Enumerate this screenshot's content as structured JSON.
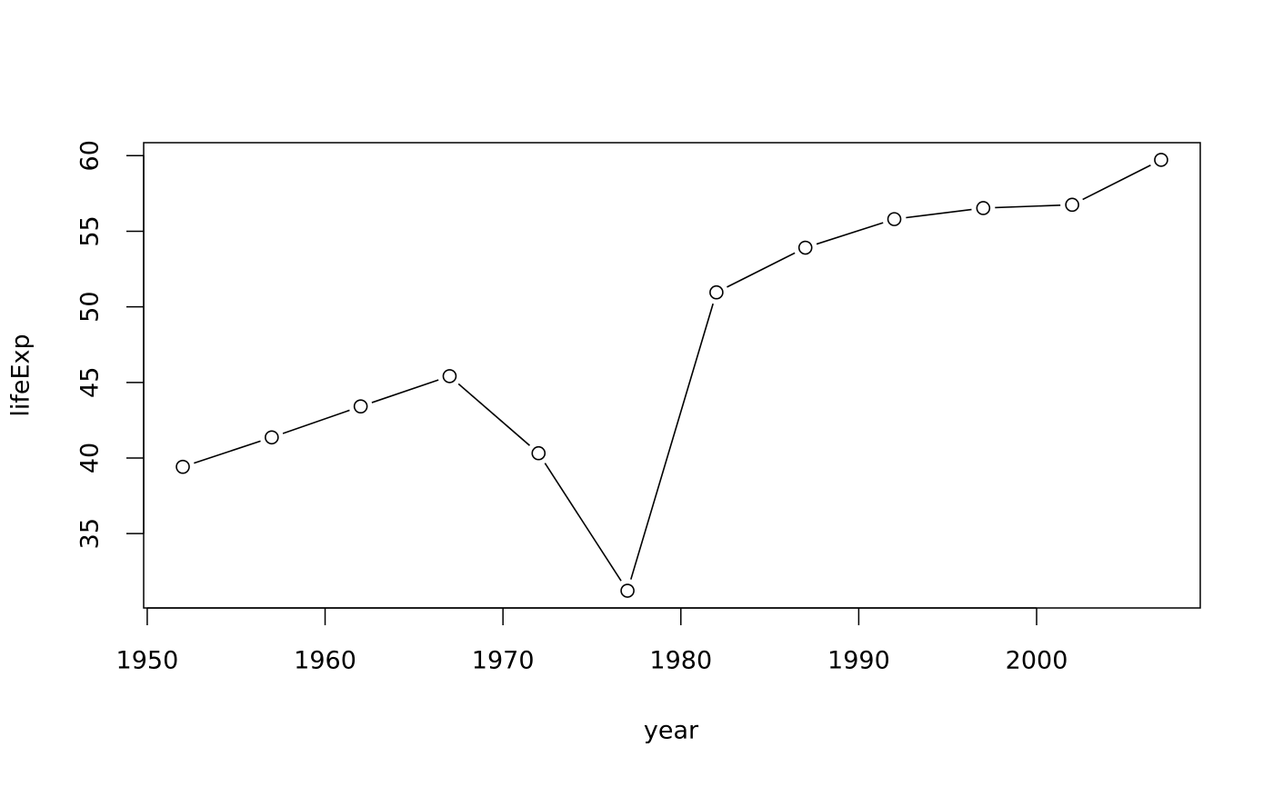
{
  "chart_data": {
    "type": "line",
    "x_label": "year",
    "y_label": "lifeExp",
    "x": [
      1952,
      1957,
      1962,
      1967,
      1972,
      1977,
      1982,
      1987,
      1992,
      1997,
      2002,
      2007
    ],
    "series": [
      {
        "name": "lifeExp",
        "color": "#000000",
        "values": [
          39.417,
          41.366,
          43.415,
          45.415,
          40.317,
          31.22,
          50.957,
          53.914,
          55.803,
          56.534,
          56.752,
          59.723
        ]
      }
    ],
    "xlim": [
      1949.8,
      2009.2
    ],
    "ylim": [
      30.08,
      60.86
    ],
    "xticks": [
      1950,
      1960,
      1970,
      1980,
      1990,
      2000
    ],
    "yticks": [
      35,
      40,
      45,
      50,
      55,
      60
    ],
    "grid": false,
    "markers": true
  }
}
